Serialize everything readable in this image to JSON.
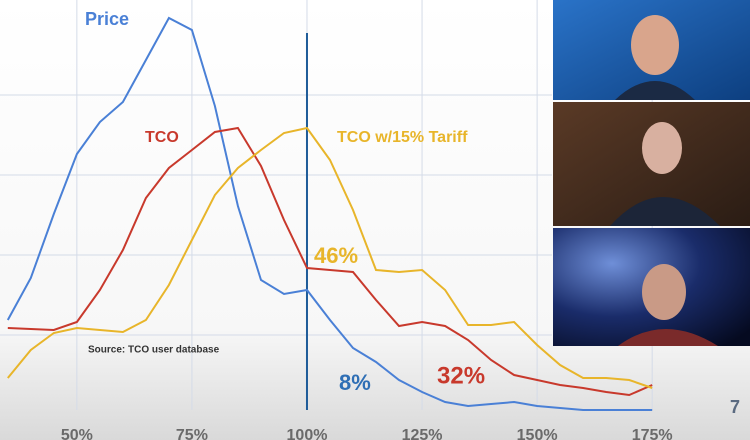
{
  "chart_data": {
    "type": "line",
    "title": "Source: TCO user database",
    "slide_number": "7",
    "x": [
      35,
      40,
      45,
      50,
      55,
      60,
      65,
      70,
      75,
      80,
      85,
      90,
      95,
      100,
      105,
      110,
      115,
      120,
      125,
      130,
      135,
      140,
      145,
      150,
      155,
      160,
      165,
      170,
      175
    ],
    "xlim": [
      33.3,
      176.7
    ],
    "ylim": [
      0,
      100
    ],
    "xticks": [
      {
        "value": 50,
        "label": "50%"
      },
      {
        "value": 75,
        "label": "75%"
      },
      {
        "value": 100,
        "label": "100%"
      },
      {
        "value": 125,
        "label": "125%"
      },
      {
        "value": 150,
        "label": "150%"
      },
      {
        "value": 175,
        "label": "175%"
      }
    ],
    "series": [
      {
        "name": "Price",
        "color": "#4a80d6",
        "values": [
          22.5,
          33,
          49,
          64,
          72,
          77,
          87.5,
          98,
          95,
          76,
          51,
          32.5,
          29,
          30,
          22.5,
          15.5,
          12,
          7.5,
          4.5,
          2,
          1,
          1.5,
          2,
          1,
          0.5,
          0,
          0,
          0,
          0
        ]
      },
      {
        "name": "TCO",
        "color": "#c8392c",
        "values": [
          20.5,
          20.25,
          20,
          22,
          30,
          40,
          53,
          60.5,
          65,
          69.5,
          70.5,
          61,
          47.5,
          35.5,
          35,
          34.5,
          27.5,
          21,
          22,
          21,
          17.5,
          12.5,
          8.75,
          7.5,
          6.25,
          5.5,
          4.5,
          3.75,
          6.25
        ]
      },
      {
        "name": "TCO  w/15% Tariff",
        "color": "#e8b52a",
        "values": [
          8,
          15,
          19.25,
          20.5,
          20,
          19.5,
          22.5,
          31.25,
          42.5,
          53.75,
          60.5,
          65,
          69.25,
          70.5,
          62.5,
          50,
          35,
          34.5,
          35,
          30,
          21.25,
          21.25,
          22,
          16.25,
          11.25,
          8,
          8,
          7.5,
          5.5
        ]
      }
    ],
    "annotations": [
      {
        "text": "46%",
        "color": "#e8b52a"
      },
      {
        "text": "8%",
        "color": "#2f6fb5"
      },
      {
        "text": "32%",
        "color": "#c8392c"
      }
    ],
    "reference_line": 100
  }
}
